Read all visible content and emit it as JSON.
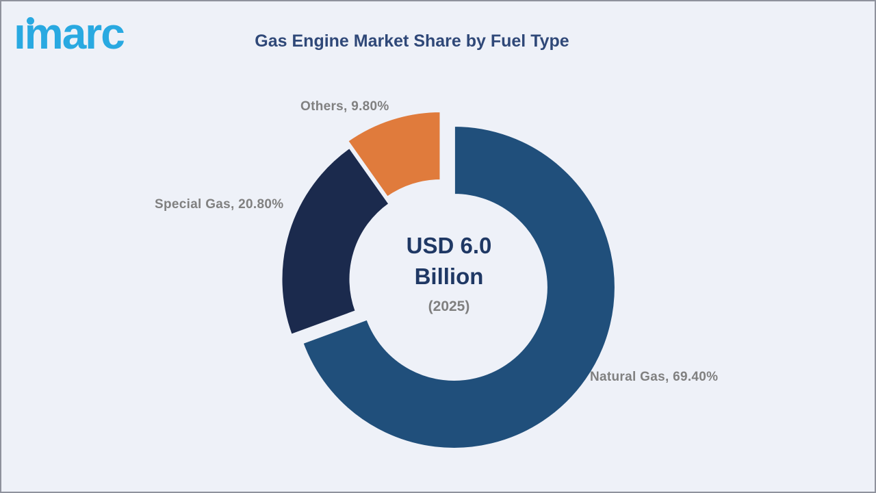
{
  "brand": {
    "logo_text": "ımarc",
    "logo_color": "#29A9E1"
  },
  "header": {
    "title": "Gas Engine Market Share by Fuel Type",
    "title_color": "#2F4878"
  },
  "center_label": {
    "line1": "USD 6.0",
    "line2": "Billion",
    "line3": "(2025)",
    "value_color": "#1F3864",
    "year_color": "#7F7F7F"
  },
  "chart_data": {
    "type": "pie",
    "subtype": "donut",
    "title": "Gas Engine Market Share by Fuel Type",
    "unit": "%",
    "start_angle_deg": 0,
    "direction": "clockwise",
    "legend_position": "none",
    "grid": false,
    "background": "#EEF1F8",
    "labels_color": "#808080",
    "center_text": [
      "USD 6.0",
      "Billion",
      "(2025)"
    ],
    "segments": [
      {
        "label": "Natural Gas",
        "value": 69.4,
        "display": "Natural Gas, 69.40%",
        "color": "#204F7B"
      },
      {
        "label": "Special Gas",
        "value": 20.8,
        "display": "Special Gas, 20.80%",
        "color": "#1B2A4D"
      },
      {
        "label": "Others",
        "value": 9.8,
        "display": "Others, 9.80%",
        "color": "#E07B3C"
      }
    ]
  }
}
